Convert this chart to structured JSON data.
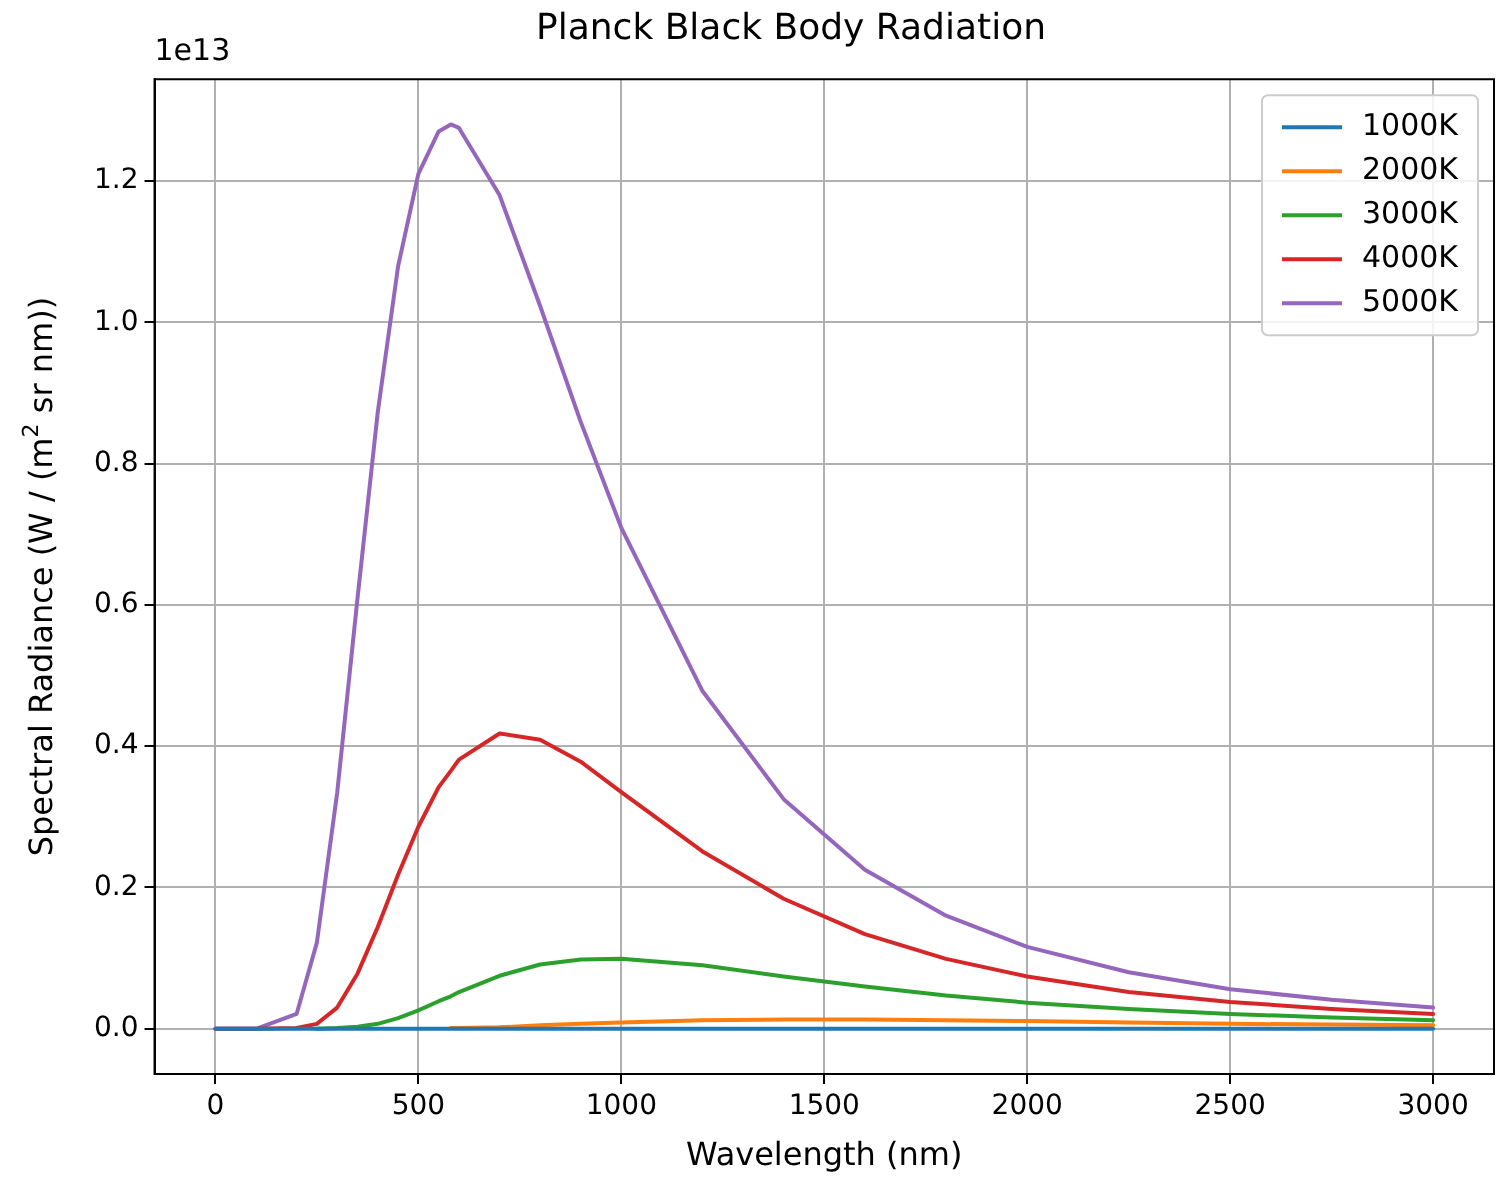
{
  "chart_data": {
    "type": "line",
    "title": "Planck Black Body Radiation",
    "xlabel": "Wavelength (nm)",
    "ylabel": "Spectral Radiance (W / (m$^{2}$ sr nm))",
    "annotations": [
      "1e13"
    ],
    "x": [
      0,
      100,
      200,
      250,
      300,
      350,
      400,
      450,
      500,
      550,
      580,
      600,
      700,
      800,
      900,
      1000,
      1200,
      1400,
      1600,
      1800,
      2000,
      2250,
      2500,
      2750,
      3000
    ],
    "series": [
      {
        "name": "1000K",
        "color": "#1f77b4",
        "values": [
          0,
          0,
          0,
          0,
          0,
          0,
          0,
          0,
          0,
          0,
          0,
          0,
          0,
          0,
          0,
          0,
          0,
          0,
          0,
          0,
          0,
          0,
          0,
          0,
          0
        ]
      },
      {
        "name": "2000K",
        "color": "#ff7f0e",
        "values": [
          null,
          null,
          null,
          null,
          null,
          null,
          null,
          null,
          null,
          null,
          0.001,
          0.001,
          0.002,
          0.005,
          0.007,
          0.009,
          0.012,
          0.013,
          0.013,
          0.012,
          0.011,
          0.009,
          0.007,
          0.006,
          0.005
        ]
      },
      {
        "name": "3000K",
        "color": "#2ca02c",
        "values": [
          null,
          null,
          null,
          0,
          0.001,
          0.003,
          0.007,
          0.015,
          0.026,
          0.039,
          0.046,
          0.052,
          0.075,
          0.091,
          0.098,
          0.099,
          0.09,
          0.074,
          0.06,
          0.047,
          0.037,
          0.028,
          0.021,
          0.016,
          0.012
        ]
      },
      {
        "name": "4000K",
        "color": "#d62728",
        "values": [
          0,
          0,
          0.001,
          0.007,
          0.03,
          0.078,
          0.144,
          0.218,
          0.286,
          0.342,
          0.365,
          0.381,
          0.418,
          0.409,
          0.378,
          0.335,
          0.251,
          0.184,
          0.134,
          0.099,
          0.074,
          0.052,
          0.038,
          0.028,
          0.021
        ]
      },
      {
        "name": "5000K",
        "color": "#9467bd",
        "values": [
          0,
          0,
          0.021,
          0.122,
          0.334,
          0.609,
          0.873,
          1.079,
          1.21,
          1.27,
          1.28,
          1.275,
          1.18,
          1.023,
          0.859,
          0.709,
          0.478,
          0.325,
          0.225,
          0.16,
          0.116,
          0.08,
          0.056,
          0.041,
          0.03
        ]
      }
    ],
    "xlim": [
      -150,
      3150
    ],
    "ylim": [
      -0.064,
      1.344
    ],
    "xticks": [
      0,
      500,
      1000,
      1500,
      2000,
      2500,
      3000
    ],
    "yticks": [
      {
        "value": 0,
        "label": "0.0"
      },
      {
        "value": 0.2,
        "label": "0.2"
      },
      {
        "value": 0.4,
        "label": "0.4"
      },
      {
        "value": 0.6,
        "label": "0.6"
      },
      {
        "value": 0.8,
        "label": "0.8"
      },
      {
        "value": 1,
        "label": "1.0"
      },
      {
        "value": 1.2,
        "label": "1.2"
      }
    ],
    "grid": true,
    "legend": "top right",
    "marker": "none",
    "line_style": "solid"
  }
}
